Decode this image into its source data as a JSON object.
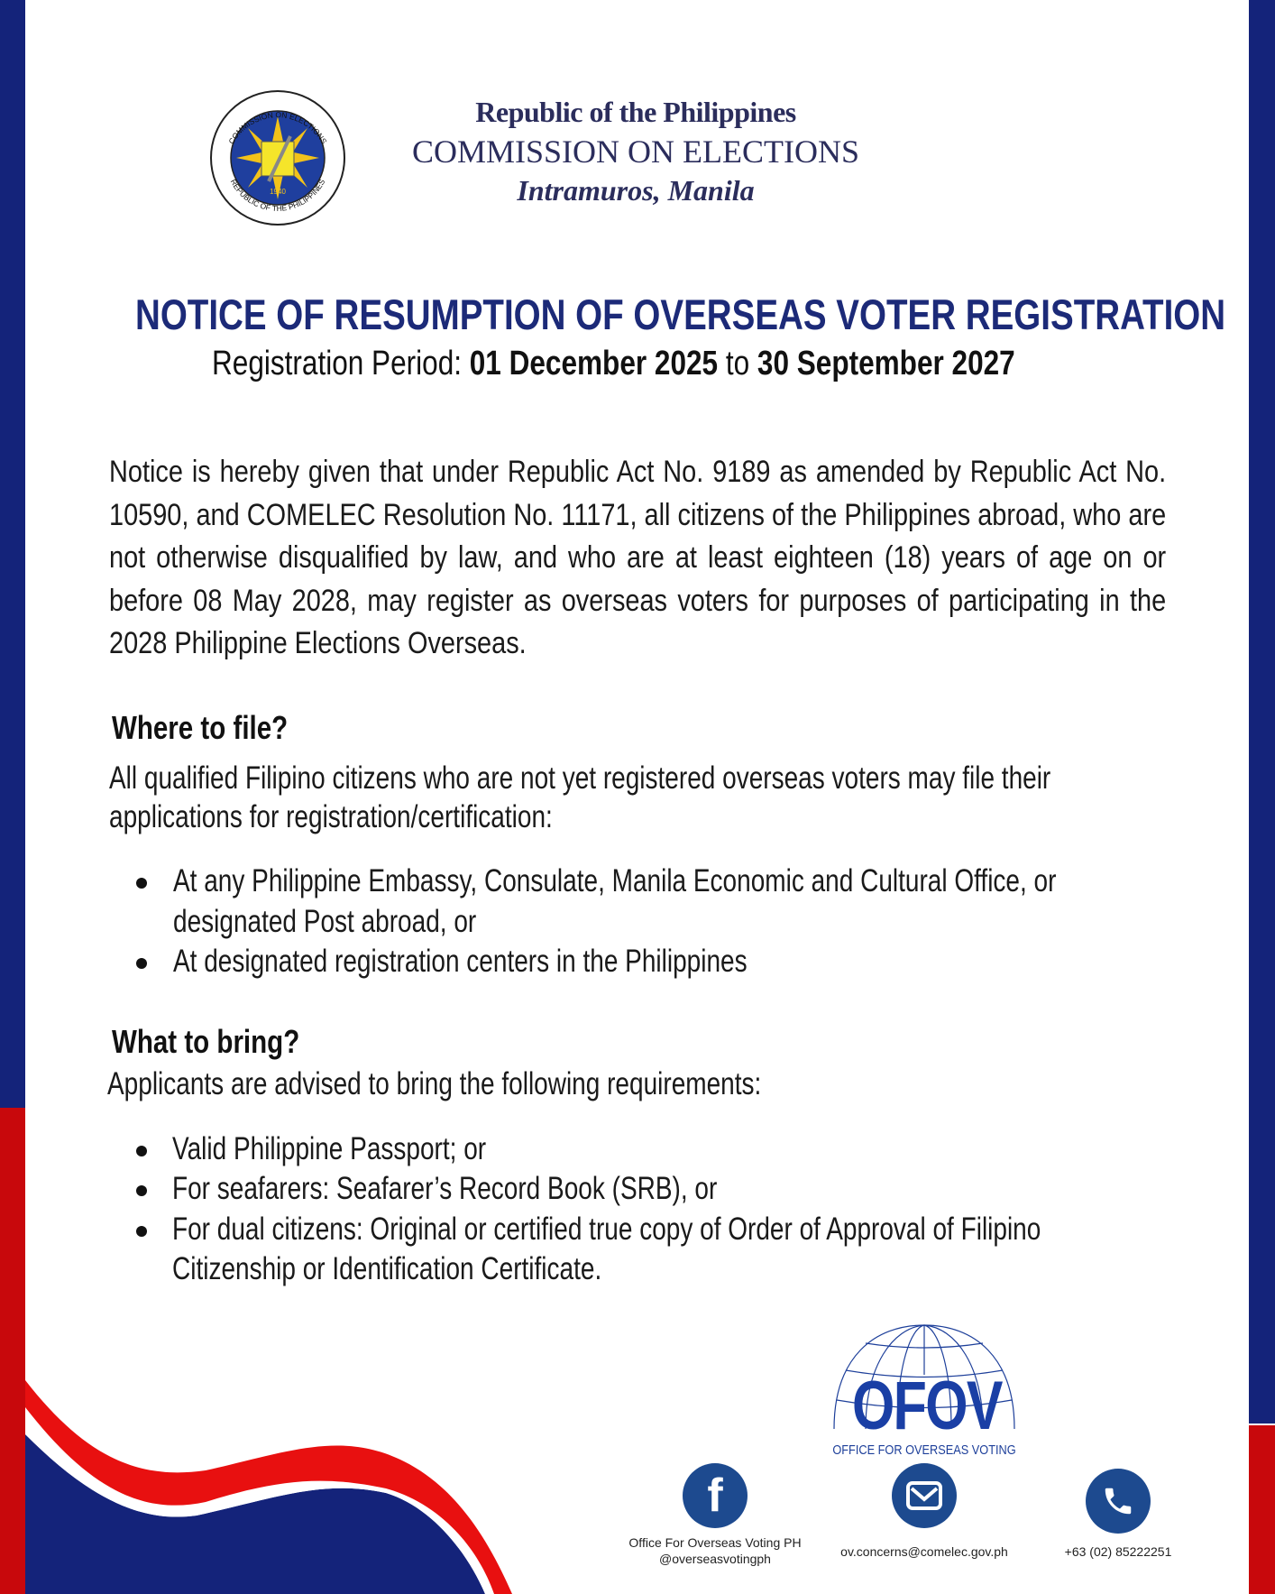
{
  "header": {
    "line1": "Republic of the Philippines",
    "line2": "COMMISSION ON ELECTIONS",
    "line3": "Intramuros, Manila",
    "seal_text_top": "COMMISSION ON ELECTIONS",
    "seal_text_bottom": "REPUBLIC OF THE PHILIPPINES",
    "seal_year": "1940"
  },
  "title": "NOTICE OF RESUMPTION OF OVERSEAS VOTER REGISTRATION",
  "period": {
    "label": "Registration Period: ",
    "start": "01 December 2025",
    "to": " to ",
    "end": "30 September 2027"
  },
  "intro": "Notice is hereby given that under Republic Act No. 9189 as amended by Republic Act No. 10590, and COMELEC Resolution No. 11171, all citizens of the Philippines abroad, who are not otherwise disqualified by law, and who are at least eighteen (18) years of age on or before 08 May 2028, may register as overseas voters for purposes of participating in the 2028 Philippine Elections Overseas.",
  "where": {
    "heading": "Where to file?",
    "text_line1": "All qualified Filipino citizens who are not yet registered overseas voters may file their",
    "text_line2": "applications for registration/certification:",
    "items": [
      {
        "l1": "At any Philippine Embassy, Consulate,  Manila Economic and Cultural Office, or",
        "l2": "designated Post abroad, or"
      },
      {
        "l1": "At designated registration centers in the Philippines"
      }
    ]
  },
  "what": {
    "heading": "What to bring?",
    "text": "Applicants are advised to bring the following requirements:",
    "items": [
      {
        "l1": "Valid Philippine Passport; or"
      },
      {
        "l1": "For seafarers: Seafarer’s Record Book (SRB), or"
      },
      {
        "l1": "For dual citizens: Original or certified true copy of Order of Approval of Filipino",
        "l2": "Citizenship or Identification Certificate."
      }
    ]
  },
  "ofov": {
    "acronym": "OFOV",
    "name": "OFFICE FOR OVERSEAS VOTING"
  },
  "contacts": {
    "facebook_name": "Office For Overseas Voting PH",
    "facebook_handle": "@overseasvotingph",
    "email": "ov.concerns@comelec.gov.ph",
    "phone": "+63 (02) 85222251"
  },
  "colors": {
    "navy": "#0f1f6e",
    "red": "#e01010",
    "title": "#1c2a78",
    "icon": "#1d4a8f"
  }
}
